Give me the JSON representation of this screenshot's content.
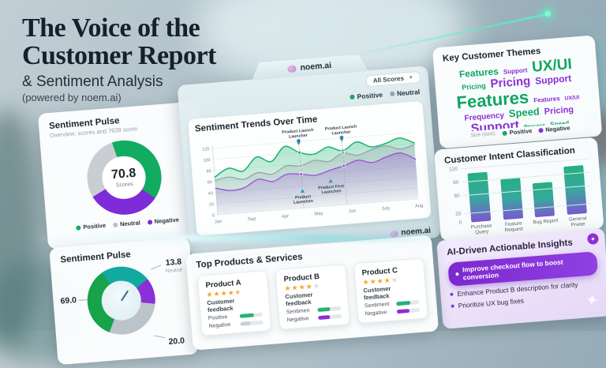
{
  "colors": {
    "positive": "#12ab62",
    "neutral": "#b9bfc6",
    "negative": "#8b2fd6",
    "accent_teal": "#5ef2c2",
    "bar_gradient_top": "#23b180",
    "bar_gradient_bottom": "#7a57d1"
  },
  "header": {
    "title_line1": "The Voice of the",
    "title_line2": "Customer Report",
    "subtitle": "& Sentiment Analysis",
    "powered_by": "(powered by noem.ai)"
  },
  "brand": {
    "name": "noem.ai"
  },
  "main_panel": {
    "filter_label": "All Scores",
    "legend": [
      {
        "label": "Positive",
        "color": "#12ab62"
      },
      {
        "label": "Neutral",
        "color": "#9aa3ab"
      }
    ]
  },
  "trends_chart": {
    "title": "Sentiment Trends Over Time",
    "chart_data": {
      "type": "area",
      "x_labels": [
        "Jan",
        "Sep",
        "Apr",
        "May",
        "Jun",
        "July",
        "Aug"
      ],
      "ylim": [
        0,
        120
      ],
      "yticks": [
        0,
        20,
        40,
        60,
        80,
        100,
        120
      ],
      "grid": true,
      "series": [
        {
          "name": "Positive",
          "color": "#1fb573",
          "values": [
            68,
            82,
            75,
            98,
            88,
            113,
            100,
            95,
            106,
            97,
            111,
            100,
            104,
            112,
            101
          ]
        },
        {
          "name": "Neutral",
          "color": "#9aa3ab",
          "values": [
            62,
            66,
            60,
            70,
            65,
            78,
            76,
            84,
            80,
            93,
            87,
            95,
            100,
            92,
            98
          ]
        },
        {
          "name": "Negative",
          "color": "#9b4fd6",
          "values": [
            48,
            42,
            45,
            58,
            52,
            63,
            61,
            57,
            64,
            70,
            78,
            72,
            80,
            85,
            72
          ]
        }
      ],
      "event_lines": [
        {
          "index": 6,
          "label_lines": [
            "Product Launch",
            "Launcher"
          ]
        },
        {
          "index": 9,
          "label_lines": [
            "Product Launch",
            "Launcher"
          ]
        }
      ],
      "event_markers": [
        {
          "index": 6,
          "value": 30,
          "label_lines": [
            "Product",
            "Launchen"
          ]
        },
        {
          "index": 8,
          "value": 44,
          "label_lines": [
            "Product First",
            "Launchen"
          ]
        }
      ]
    }
  },
  "sentiment_pulse": {
    "title": "Sentiment Pulse",
    "subtitle": "Overview: scores and 7638 score",
    "score": "70.8",
    "score_label": "Scores",
    "donut": {
      "from_deg": -15,
      "segments": [
        {
          "label": "Positive",
          "color": "#12ab62",
          "deg": 143
        },
        {
          "label": "Negative",
          "color": "#7e2bd8",
          "deg": 115
        },
        {
          "label": "Neutral",
          "color": "#c9ced3",
          "deg": 102
        }
      ]
    },
    "legend": [
      {
        "label": "Positive",
        "color": "#12ab62"
      },
      {
        "label": "Neutral",
        "color": "#b9bfc6"
      },
      {
        "label": "Negative",
        "color": "#7e2bd8"
      }
    ]
  },
  "themes": {
    "title": "Key Customer Themes",
    "words": [
      {
        "text": "Features",
        "sentiment": "positive",
        "size": 12
      },
      {
        "text": "Support",
        "sentiment": "negative",
        "size": 8
      },
      {
        "text": "UX/UI",
        "sentiment": "positive",
        "size": 19
      },
      {
        "text": "Pricing",
        "sentiment": "positive",
        "size": 9
      },
      {
        "text": "Pricing",
        "sentiment": "negative",
        "size": 15
      },
      {
        "text": "Support",
        "sentiment": "negative",
        "size": 12
      },
      {
        "text": "Features",
        "sentiment": "positive",
        "size": 22
      },
      {
        "text": "Features",
        "sentiment": "negative",
        "size": 8
      },
      {
        "text": "UX/UI",
        "sentiment": "negative",
        "size": 7
      },
      {
        "text": "Frequency",
        "sentiment": "negative",
        "size": 10
      },
      {
        "text": "Speed",
        "sentiment": "positive",
        "size": 13
      },
      {
        "text": "Pricing",
        "sentiment": "negative",
        "size": 11
      },
      {
        "text": "Support",
        "sentiment": "negative",
        "size": 16
      },
      {
        "text": "Process",
        "sentiment": "positive",
        "size": 7
      },
      {
        "text": "Speed",
        "sentiment": "positive",
        "size": 8
      },
      {
        "text": "Features",
        "sentiment": "positive",
        "size": 11
      }
    ],
    "legend_label": "Size (size):",
    "legend": [
      {
        "label": "Positive",
        "color": "#12ab62"
      },
      {
        "label": "Negative",
        "color": "#8b2fd6"
      }
    ]
  },
  "intent": {
    "title": "Customer Intent Classification",
    "chart_data": {
      "type": "bar",
      "categories": [
        "Purchase Query",
        "Feature Request",
        "Bug Report",
        "General Praise"
      ],
      "values": [
        110,
        92,
        76,
        108
      ],
      "yticks": [
        0,
        20,
        60,
        90,
        120
      ],
      "ylim": [
        0,
        120
      ],
      "grid": true
    }
  },
  "insights": {
    "title": "AI-Driven Actionable Insights",
    "badge_icon": "sparkle",
    "items": [
      {
        "text": "Improve checkout flow to boost conversion",
        "highlighted": true
      },
      {
        "text": "Enhance Product B description for clarity",
        "highlighted": false
      },
      {
        "text": "Prioritize UX bug fixes",
        "highlighted": false
      }
    ]
  },
  "pulse2": {
    "title": "Sentiment Pulse",
    "donut": {
      "from_deg": 0,
      "segments": [
        {
          "label": "Teal",
          "color": "#12a9a0",
          "deg": 55
        },
        {
          "label": "Negative",
          "color": "#8b2fd6",
          "deg": 45
        },
        {
          "label": "Neutral",
          "color": "#bcc3c9",
          "deg": 105
        },
        {
          "label": "Positive",
          "color": "#16a34a",
          "deg": 125
        },
        {
          "label": "Teal",
          "color": "#12a9a0",
          "deg": 30
        }
      ]
    },
    "callouts": [
      {
        "value": "69.0",
        "caption": "",
        "pos": "left"
      },
      {
        "value": "13.8",
        "caption": "Neutral",
        "pos": "top-right"
      },
      {
        "value": "20.0",
        "caption": "",
        "pos": "bottom-right"
      }
    ]
  },
  "products": {
    "title": "Top Products & Services",
    "items": [
      {
        "name": "Product A",
        "rating": 4.5,
        "feedback_label": "Customer feedback",
        "bars": [
          {
            "label": "Positive",
            "color": "#22b573",
            "pct": 62
          },
          {
            "label": "Negative",
            "color": "#c9cfd5",
            "pct": 46
          }
        ]
      },
      {
        "name": "Product B",
        "rating": 4,
        "feedback_label": "Customer feedback",
        "bars": [
          {
            "label": "Sentimen",
            "color": "#22b573",
            "pct": 55
          },
          {
            "label": "Negative",
            "color": "#8b2fd6",
            "pct": 50
          }
        ]
      },
      {
        "name": "Product C",
        "rating": 4,
        "feedback_label": "Customer feedback",
        "bars": [
          {
            "label": "Sentiment",
            "color": "#22b573",
            "pct": 64
          },
          {
            "label": "Negative",
            "color": "#8b2fd6",
            "pct": 56
          }
        ]
      }
    ]
  }
}
